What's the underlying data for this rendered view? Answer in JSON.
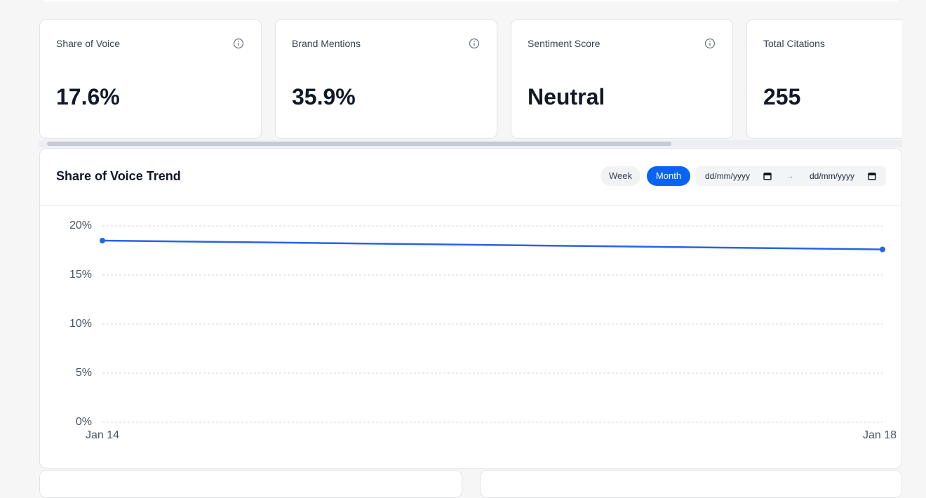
{
  "cards": [
    {
      "title": "Share of Voice",
      "value": "17.6%"
    },
    {
      "title": "Brand Mentions",
      "value": "35.9%"
    },
    {
      "title": "Sentiment Score",
      "value": "Neutral"
    },
    {
      "title": "Total Citations",
      "value": "255"
    }
  ],
  "controls": {
    "periods": [
      "Week",
      "Month"
    ],
    "active_period": 1,
    "date_inputs": [
      "dd/mm/yyyy",
      "dd/mm/yyyy"
    ],
    "date_separator": "→"
  },
  "chart_data": {
    "type": "line",
    "title": "Share of Voice Trend",
    "categories": [
      "Jan 14",
      "Jan 18"
    ],
    "values": [
      18.5,
      17.6
    ],
    "color": "#2563eb",
    "ylim": [
      0,
      20
    ],
    "yticks": [
      {
        "value": 0,
        "label": "0%"
      },
      {
        "value": 5,
        "label": "5%"
      },
      {
        "value": 10,
        "label": "10%"
      },
      {
        "value": 15,
        "label": "15%"
      },
      {
        "value": 20,
        "label": "20%"
      }
    ],
    "grid": true
  }
}
